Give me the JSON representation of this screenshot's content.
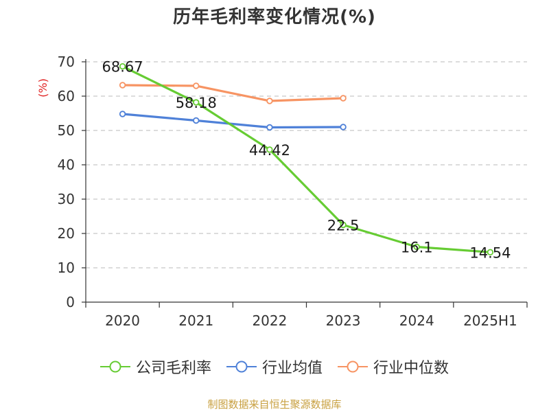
{
  "title": "历年毛利率变化情况(%)",
  "footer": "制图数据来自恒生聚源数据库",
  "colors": {
    "company": "#66cc33",
    "industry_avg": "#4f81d8",
    "industry_median": "#f79463",
    "ylabel": "#e02020",
    "axis": "#333333",
    "grid": "#c8c8c8",
    "footer": "#c8a040"
  },
  "chart_data": {
    "type": "line",
    "title": "历年毛利率变化情况(%)",
    "ylabel": "(%)",
    "xlabel": "",
    "categories": [
      "2020",
      "2021",
      "2022",
      "2023",
      "2024",
      "2025H1"
    ],
    "ylim": [
      0,
      70
    ],
    "yticks": [
      0,
      10,
      20,
      30,
      40,
      50,
      60,
      70
    ],
    "grid": true,
    "legend_position": "bottom",
    "series": [
      {
        "name": "公司毛利率",
        "color": "#66cc33",
        "values": [
          68.67,
          58.18,
          44.42,
          22.5,
          16.1,
          14.54
        ],
        "labels": [
          "68.67",
          "58.18",
          "44.42",
          "22.5",
          "16.1",
          "14.54"
        ]
      },
      {
        "name": "行业均值",
        "color": "#4f81d8",
        "values": [
          54.8,
          52.9,
          50.9,
          51.0,
          null,
          null
        ]
      },
      {
        "name": "行业中位数",
        "color": "#f79463",
        "values": [
          63.2,
          63.0,
          58.6,
          59.4,
          null,
          null
        ]
      }
    ]
  }
}
